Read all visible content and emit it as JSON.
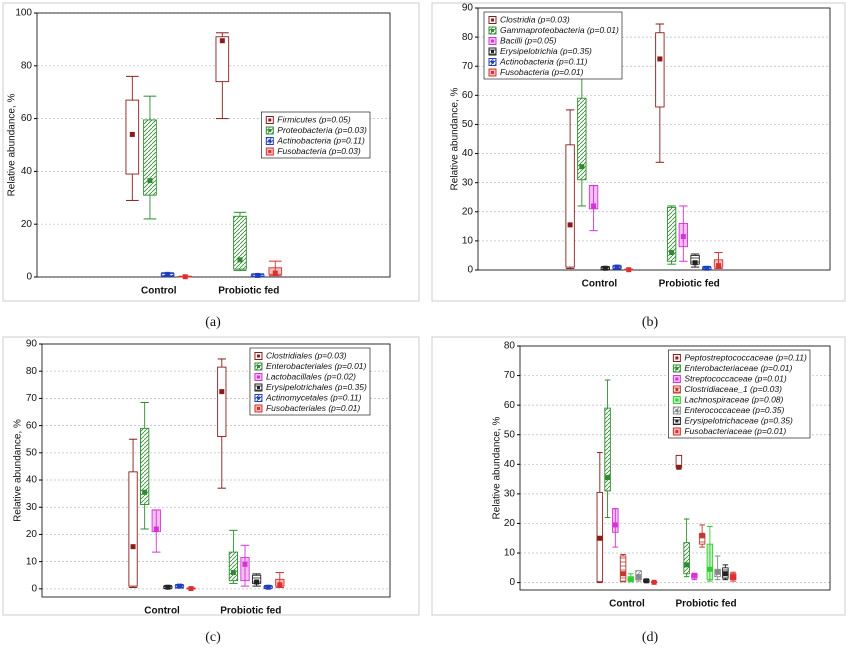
{
  "chart_data": [
    {
      "type": "box",
      "caption": "(a)",
      "ylabel": "Relative abundance, %",
      "categories": [
        "Control",
        "Probiotic fed"
      ],
      "ylim": [
        0,
        100
      ],
      "yticks": [
        0,
        20,
        40,
        60,
        80,
        100
      ],
      "grid": true,
      "legend": "center right",
      "series": [
        {
          "name": "Firmicutes (p=0.05)",
          "color": "#8b1c1c",
          "fill": "none",
          "min": [
            29,
            60
          ],
          "q1": [
            39,
            74
          ],
          "median": [
            54,
            89.5
          ],
          "q3": [
            67,
            91
          ],
          "max": [
            76,
            92.5
          ]
        },
        {
          "name": "Proteobacteria (p=0.03)",
          "color": "#2e8b2e",
          "fill": "hatch",
          "min": [
            22,
            2.5
          ],
          "q1": [
            31,
            3
          ],
          "median": [
            36.5,
            6.5
          ],
          "q3": [
            59.5,
            23
          ],
          "max": [
            68.5,
            24.5
          ]
        },
        {
          "name": "Actinobacteria (p=0.11)",
          "color": "#1f3fbf",
          "fill": "hatch",
          "min": [
            0.2,
            0.1
          ],
          "q1": [
            0.5,
            0.3
          ],
          "median": [
            1,
            0.6
          ],
          "q3": [
            1.3,
            0.9
          ],
          "max": [
            1.6,
            1.2
          ]
        },
        {
          "name": "Fusobacteria (p=0.03)",
          "color": "#d93030",
          "fill": "light",
          "min": [
            0,
            0.5
          ],
          "q1": [
            0.05,
            1
          ],
          "median": [
            0.1,
            1.5
          ],
          "q3": [
            0.2,
            3.5
          ],
          "max": [
            0.3,
            6
          ]
        }
      ]
    },
    {
      "type": "box",
      "caption": "(b)",
      "ylabel": "Relative abundance, %",
      "categories": [
        "Control",
        "Probiotic fed"
      ],
      "ylim": [
        0,
        90
      ],
      "yticks": [
        0,
        10,
        20,
        30,
        40,
        50,
        60,
        70,
        80,
        90
      ],
      "grid": true,
      "legend": "upper left",
      "series": [
        {
          "name": "Clostridia (p=0.03)",
          "color": "#8b1c1c",
          "fill": "none",
          "min": [
            0.5,
            37
          ],
          "q1": [
            1,
            56
          ],
          "median": [
            15.5,
            72.5
          ],
          "q3": [
            43,
            81.5
          ],
          "max": [
            55,
            84.5
          ]
        },
        {
          "name": "Gammaproteobacteria (p=0.01)",
          "color": "#2e8b2e",
          "fill": "hatch",
          "min": [
            22,
            2
          ],
          "q1": [
            31,
            3
          ],
          "median": [
            35.5,
            6
          ],
          "q3": [
            59,
            21.5
          ],
          "max": [
            68.5,
            22
          ]
        },
        {
          "name": "Bacilli (p=0.05)",
          "color": "#d633d6",
          "fill": "light",
          "min": [
            13.5,
            3
          ],
          "q1": [
            21,
            8
          ],
          "median": [
            22,
            11.5
          ],
          "q3": [
            29,
            16
          ],
          "max": [
            29,
            22
          ]
        },
        {
          "name": "Erysipelotrichia (p=0.35)",
          "color": "#222222",
          "fill": "hlines",
          "min": [
            0.1,
            1
          ],
          "q1": [
            0.3,
            2
          ],
          "median": [
            0.6,
            2.5
          ],
          "q3": [
            0.9,
            5
          ],
          "max": [
            1.2,
            5.5
          ]
        },
        {
          "name": "Actinobacteria (p=0.11)",
          "color": "#1f3fbf",
          "fill": "hatch",
          "min": [
            0.3,
            0.1
          ],
          "q1": [
            0.6,
            0.3
          ],
          "median": [
            1,
            0.6
          ],
          "q3": [
            1.3,
            0.9
          ],
          "max": [
            1.6,
            1.2
          ]
        },
        {
          "name": "Fusobacteria (p=0.01)",
          "color": "#d93030",
          "fill": "light",
          "min": [
            0,
            0.5
          ],
          "q1": [
            0.05,
            1
          ],
          "median": [
            0.1,
            1.5
          ],
          "q3": [
            0.2,
            3.5
          ],
          "max": [
            0.3,
            6
          ]
        }
      ]
    },
    {
      "type": "box",
      "caption": "(c)",
      "ylabel": "Relative abundance, %",
      "categories": [
        "Control",
        "Probiotic fed"
      ],
      "ylim": [
        -3,
        90
      ],
      "yticks": [
        0,
        10,
        20,
        30,
        40,
        50,
        60,
        70,
        80,
        90
      ],
      "grid": true,
      "legend": "upper right",
      "series": [
        {
          "name": "Clostridiales (p=0.03)",
          "color": "#8b1c1c",
          "fill": "none",
          "min": [
            0.5,
            37
          ],
          "q1": [
            1,
            56
          ],
          "median": [
            15.5,
            72.5
          ],
          "q3": [
            43,
            81.5
          ],
          "max": [
            55,
            84.5
          ]
        },
        {
          "name": "Enterobacteriales (p=0.01)",
          "color": "#2e8b2e",
          "fill": "hatch",
          "min": [
            22,
            2
          ],
          "q1": [
            31,
            3
          ],
          "median": [
            35.5,
            6
          ],
          "q3": [
            59,
            13.5
          ],
          "max": [
            68.5,
            21.5
          ]
        },
        {
          "name": "Lactobacillales (p=0.02)",
          "color": "#d633d6",
          "fill": "light",
          "min": [
            13.5,
            1
          ],
          "q1": [
            21,
            3
          ],
          "median": [
            22,
            9
          ],
          "q3": [
            29,
            11.5
          ],
          "max": [
            29,
            16
          ]
        },
        {
          "name": "Erysipelotrichales (p=0.35)",
          "color": "#222222",
          "fill": "hlines",
          "min": [
            0.1,
            1
          ],
          "q1": [
            0.3,
            2
          ],
          "median": [
            0.6,
            2.5
          ],
          "q3": [
            0.9,
            5
          ],
          "max": [
            1.2,
            5.5
          ]
        },
        {
          "name": "Actinomycetales (p=0.11)",
          "color": "#1f3fbf",
          "fill": "hatch",
          "min": [
            0.3,
            0.1
          ],
          "q1": [
            0.6,
            0.3
          ],
          "median": [
            1,
            0.6
          ],
          "q3": [
            1.3,
            0.9
          ],
          "max": [
            1.6,
            1.2
          ]
        },
        {
          "name": "Fusobacteriales (p=0.01)",
          "color": "#d93030",
          "fill": "light",
          "min": [
            0,
            0.5
          ],
          "q1": [
            0.05,
            1
          ],
          "median": [
            0.1,
            1.5
          ],
          "q3": [
            0.2,
            3.5
          ],
          "max": [
            0.3,
            6
          ]
        }
      ]
    },
    {
      "type": "box",
      "caption": "(d)",
      "ylabel": "Relative abundance, %",
      "categories": [
        "Control",
        "Probiotic fed"
      ],
      "ylim": [
        -2.5,
        80
      ],
      "yticks": [
        0,
        10,
        20,
        30,
        40,
        50,
        60,
        70,
        80
      ],
      "grid": true,
      "legend": "upper right",
      "series": [
        {
          "name": "Peptostreptococcaceae (p=0.11)",
          "color": "#8b1c1c",
          "fill": "none",
          "min": [
            0,
            38.5
          ],
          "q1": [
            0.3,
            39
          ],
          "median": [
            15,
            39
          ],
          "q3": [
            30.5,
            43
          ],
          "max": [
            44,
            43
          ]
        },
        {
          "name": "Enterobacteriaceae (p=0.01)",
          "color": "#2e8b2e",
          "fill": "hatch",
          "min": [
            22,
            2
          ],
          "q1": [
            31,
            3
          ],
          "median": [
            35.5,
            6
          ],
          "q3": [
            59,
            13.5
          ],
          "max": [
            68.5,
            21.5
          ]
        },
        {
          "name": "Streptococcaceae (p=0.01)",
          "color": "#d633d6",
          "fill": "light",
          "min": [
            12,
            1
          ],
          "q1": [
            17,
            1.5
          ],
          "median": [
            19.5,
            2.5
          ],
          "q3": [
            25,
            3
          ],
          "max": [
            25,
            3
          ]
        },
        {
          "name": "Clostridiaceae_1 (p=0.03)",
          "color": "#c0392b",
          "fill": "hlines",
          "min": [
            0.3,
            12
          ],
          "q1": [
            0.5,
            13
          ],
          "median": [
            3,
            16
          ],
          "q3": [
            9,
            16.5
          ],
          "max": [
            9.5,
            19.5
          ]
        },
        {
          "name": "Lachnospiraceae (p=0.08)",
          "color": "#33cc33",
          "fill": "light",
          "min": [
            0.3,
            0.5
          ],
          "q1": [
            0.5,
            1
          ],
          "median": [
            1,
            4.5
          ],
          "q3": [
            2,
            13
          ],
          "max": [
            3,
            19
          ]
        },
        {
          "name": "Enterococcaceae (p=0.35)",
          "color": "#888888",
          "fill": "hatch",
          "min": [
            0.5,
            1
          ],
          "q1": [
            1,
            2
          ],
          "median": [
            2,
            3.5
          ],
          "q3": [
            4,
            4.5
          ],
          "max": [
            4,
            9
          ]
        },
        {
          "name": "Erysipelotrichaceae (p=0.35)",
          "color": "#222222",
          "fill": "hlines",
          "min": [
            0.1,
            1
          ],
          "q1": [
            0.3,
            1.5
          ],
          "median": [
            0.6,
            3
          ],
          "q3": [
            1,
            5
          ],
          "max": [
            1.2,
            6
          ]
        },
        {
          "name": "Fusobacteriaceae (p=0.01)",
          "color": "#d93030",
          "fill": "light",
          "min": [
            0,
            0.5
          ],
          "q1": [
            0.05,
            1
          ],
          "median": [
            0.1,
            2
          ],
          "q3": [
            0.2,
            3
          ],
          "max": [
            0.3,
            3.5
          ]
        }
      ]
    }
  ]
}
